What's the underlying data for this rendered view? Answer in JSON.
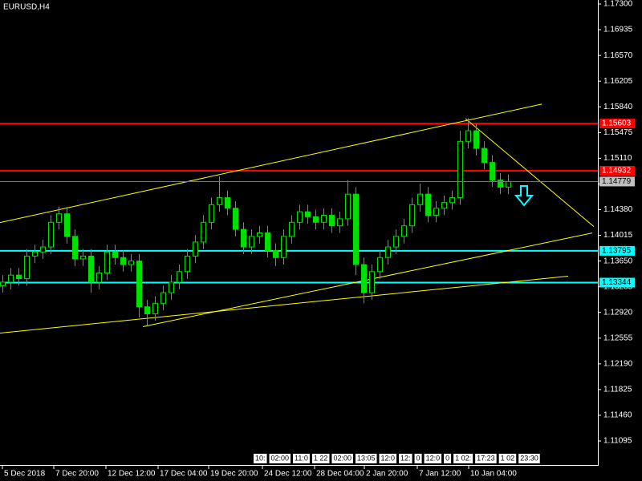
{
  "chart_data": {
    "type": "candlestick",
    "title": "EURUSD,H4",
    "candle_color": "#00e000",
    "xlim": [
      -0.3,
      74.2
    ],
    "ylim": [
      1.10754,
      1.17357
    ],
    "open": [
      1.133,
      1.1335,
      1.1345,
      1.134,
      1.1372,
      1.1378,
      1.1385,
      1.142,
      1.1432,
      1.14,
      1.1368,
      1.1372,
      1.1335,
      1.1348,
      1.1378,
      1.137,
      1.136,
      1.1365,
      1.13,
      1.129,
      1.1305,
      1.132,
      1.1335,
      1.135,
      1.1372,
      1.1392,
      1.142,
      1.1445,
      1.1455,
      1.144,
      1.141,
      1.1385,
      1.14,
      1.1405,
      1.138,
      1.137,
      1.14,
      1.142,
      1.1435,
      1.1428,
      1.142,
      1.143,
      1.1415,
      1.1425,
      1.146,
      1.136,
      1.132,
      1.135,
      1.137,
      1.1385,
      1.14,
      1.1415,
      1.1445,
      1.146,
      1.143,
      1.144,
      1.1448,
      1.1455,
      1.1535,
      1.155,
      1.1525,
      1.1505,
      1.148,
      1.147
    ],
    "high": [
      1.1345,
      1.1355,
      1.1355,
      1.1382,
      1.1388,
      1.1395,
      1.143,
      1.1442,
      1.1442,
      1.141,
      1.1382,
      1.1382,
      1.1358,
      1.1388,
      1.1388,
      1.138,
      1.1375,
      1.1375,
      1.131,
      1.1315,
      1.133,
      1.1345,
      1.136,
      1.1382,
      1.1402,
      1.143,
      1.1455,
      1.1485,
      1.1465,
      1.145,
      1.142,
      1.141,
      1.1415,
      1.1415,
      1.139,
      1.141,
      1.143,
      1.1445,
      1.1445,
      1.1438,
      1.144,
      1.144,
      1.1435,
      1.148,
      1.147,
      1.137,
      1.136,
      1.138,
      1.1395,
      1.141,
      1.1425,
      1.1455,
      1.1475,
      1.147,
      1.145,
      1.1458,
      1.1465,
      1.155,
      1.1568,
      1.156,
      1.1535,
      1.1515,
      1.149,
      1.1488
    ],
    "low": [
      1.132,
      1.1325,
      1.133,
      1.133,
      1.1362,
      1.1368,
      1.1375,
      1.141,
      1.139,
      1.1358,
      1.1358,
      1.132,
      1.1325,
      1.1338,
      1.136,
      1.135,
      1.135,
      1.1285,
      1.1273,
      1.128,
      1.1295,
      1.131,
      1.1325,
      1.134,
      1.1362,
      1.1382,
      1.141,
      1.1435,
      1.143,
      1.14,
      1.1375,
      1.1375,
      1.139,
      1.137,
      1.1358,
      1.136,
      1.139,
      1.141,
      1.1418,
      1.141,
      1.141,
      1.1405,
      1.1405,
      1.1415,
      1.1345,
      1.1305,
      1.131,
      1.134,
      1.136,
      1.1375,
      1.139,
      1.1405,
      1.1435,
      1.142,
      1.142,
      1.143,
      1.1438,
      1.1445,
      1.1525,
      1.1515,
      1.1495,
      1.147,
      1.146,
      1.146
    ],
    "close": [
      1.1335,
      1.1345,
      1.134,
      1.1372,
      1.1378,
      1.1385,
      1.142,
      1.1432,
      1.14,
      1.1368,
      1.1372,
      1.1335,
      1.1348,
      1.1378,
      1.137,
      1.136,
      1.1365,
      1.13,
      1.129,
      1.1305,
      1.132,
      1.1335,
      1.135,
      1.1372,
      1.1392,
      1.142,
      1.1445,
      1.1455,
      1.144,
      1.141,
      1.1385,
      1.14,
      1.1405,
      1.138,
      1.137,
      1.14,
      1.142,
      1.1435,
      1.1428,
      1.142,
      1.143,
      1.1415,
      1.1425,
      1.146,
      1.136,
      1.132,
      1.135,
      1.137,
      1.1385,
      1.14,
      1.1415,
      1.1445,
      1.146,
      1.143,
      1.144,
      1.1448,
      1.1455,
      1.1535,
      1.155,
      1.1525,
      1.1505,
      1.148,
      1.147,
      1.1478
    ],
    "yticks": [
      {
        "value": 1.173,
        "label": "1.17300"
      },
      {
        "value": 1.16935,
        "label": "1.16935"
      },
      {
        "value": 1.1657,
        "label": "1.16570"
      },
      {
        "value": 1.16205,
        "label": "1.16205"
      },
      {
        "value": 1.1584,
        "label": "1.15840"
      },
      {
        "value": 1.15475,
        "label": "1.15475"
      },
      {
        "value": 1.1511,
        "label": "1.15110"
      },
      {
        "value": 1.14745,
        "label": "1.14745"
      },
      {
        "value": 1.1438,
        "label": "1.14380"
      },
      {
        "value": 1.14015,
        "label": "1.14015"
      },
      {
        "value": 1.1365,
        "label": "1.13650"
      },
      {
        "value": 1.13285,
        "label": "1.13285"
      },
      {
        "value": 1.1292,
        "label": "1.12920"
      },
      {
        "value": 1.12555,
        "label": "1.12555"
      },
      {
        "value": 1.1219,
        "label": "1.12190"
      },
      {
        "value": 1.11825,
        "label": "1.11825"
      },
      {
        "value": 1.1146,
        "label": "1.11460"
      },
      {
        "value": 1.11095,
        "label": "1.11095"
      }
    ],
    "xticks": [
      {
        "value": 0,
        "label": "5 Dec 2018"
      },
      {
        "value": 6.4,
        "label": "7 Dec 20:00"
      },
      {
        "value": 12.9,
        "label": "12 Dec 12:00"
      },
      {
        "value": 19.4,
        "label": "17 Dec 04:00"
      },
      {
        "value": 25.7,
        "label": "19 Dec 20:00"
      },
      {
        "value": 32.4,
        "label": "24 Dec 12:00"
      },
      {
        "value": 38.9,
        "label": "28 Dec 04:00"
      },
      {
        "value": 45.1,
        "label": "2 Jan 20:00"
      },
      {
        "value": 51.7,
        "label": "7 Jan 12:00"
      },
      {
        "value": 58.1,
        "label": "10 Jan 04:00"
      }
    ],
    "levels": [
      {
        "value": 1.15603,
        "color": "#ff0000"
      },
      {
        "value": 1.14932,
        "color": "#ff0000"
      },
      {
        "value": 1.13795,
        "color": "#00ffff"
      },
      {
        "value": 1.13344,
        "color": "#00ffff"
      }
    ],
    "current_price": 1.14779,
    "trendline_color": "#ffff00",
    "trendlines": [
      [
        [
          -0.3,
          1.14196
        ],
        [
          67.2,
          1.15879
        ]
      ],
      [
        [
          -0.3,
          1.12627
        ],
        [
          70.5,
          1.13435
        ]
      ],
      [
        [
          17.5,
          1.12718
        ],
        [
          73.5,
          1.14048
        ]
      ],
      [
        [
          57.7,
          1.15674
        ],
        [
          73.7,
          1.14139
        ]
      ]
    ],
    "time_strip": [
      "10:",
      "02:00",
      "11:0",
      "1 22",
      "02:00",
      "13:05",
      "12:0",
      "12:",
      "0",
      "12:0",
      "0",
      "1 02:",
      "17:23",
      "1 02",
      "23:30"
    ]
  }
}
